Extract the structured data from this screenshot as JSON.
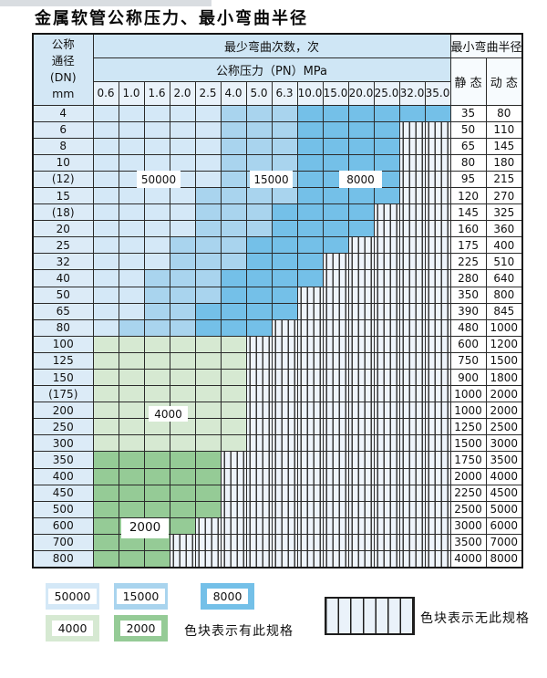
{
  "title": "金属软管公称压力、最小弯曲半径",
  "colors": {
    "b50000": "#d4e8f7",
    "b15000": "#a9d4ee",
    "b8000": "#74c0e8",
    "b4000": "#d6e9d2",
    "b2000": "#95cb96",
    "hatch_bg": "#eef4fb",
    "header_bg": "#cfe6f5",
    "dn_col_bg": "#dcebf7",
    "grid_line": "#2b2b2b"
  },
  "table": {
    "dn_header": [
      "公称",
      "通径",
      "(DN)",
      "mm"
    ],
    "bend_cycles_header": "最少弯曲次数，次",
    "pressure_header": "公称压力（PN）MPa",
    "radius_header": "最小弯曲半径",
    "static_label": "静 态",
    "dynamic_label": "动 态",
    "pressure_columns": [
      "0.6",
      "1.0",
      "1.6",
      "2.0",
      "2.5",
      "4.0",
      "5.0",
      "6.3",
      "10.0",
      "15.0",
      "20.0",
      "25.0",
      "32.0",
      "35.0"
    ],
    "rows": [
      {
        "dn": "4",
        "static": "35",
        "dynamic": "80",
        "segments": [
          [
            "b50000",
            5
          ],
          [
            "b15000",
            3
          ],
          [
            "b8000",
            6
          ]
        ]
      },
      {
        "dn": "6",
        "static": "50",
        "dynamic": "110",
        "segments": [
          [
            "b50000",
            5
          ],
          [
            "b15000",
            3
          ],
          [
            "b8000",
            4
          ],
          [
            "hatch",
            2
          ]
        ]
      },
      {
        "dn": "8",
        "static": "65",
        "dynamic": "145",
        "segments": [
          [
            "b50000",
            5
          ],
          [
            "b15000",
            3
          ],
          [
            "b8000",
            4
          ],
          [
            "hatch",
            2
          ]
        ]
      },
      {
        "dn": "10",
        "static": "80",
        "dynamic": "180",
        "segments": [
          [
            "b50000",
            5
          ],
          [
            "b15000",
            3
          ],
          [
            "b8000",
            4
          ],
          [
            "hatch",
            2
          ]
        ]
      },
      {
        "dn": "(12)",
        "static": "95",
        "dynamic": "215",
        "segments": [
          [
            "b50000",
            5
          ],
          [
            "b15000",
            3
          ],
          [
            "b8000",
            4
          ],
          [
            "hatch",
            2
          ]
        ]
      },
      {
        "dn": "15",
        "static": "120",
        "dynamic": "270",
        "segments": [
          [
            "b50000",
            4
          ],
          [
            "b15000",
            4
          ],
          [
            "b8000",
            4
          ],
          [
            "hatch",
            2
          ]
        ]
      },
      {
        "dn": "(18)",
        "static": "145",
        "dynamic": "325",
        "segments": [
          [
            "b50000",
            4
          ],
          [
            "b15000",
            3
          ],
          [
            "b8000",
            4
          ],
          [
            "hatch",
            3
          ]
        ]
      },
      {
        "dn": "20",
        "static": "160",
        "dynamic": "360",
        "segments": [
          [
            "b50000",
            4
          ],
          [
            "b15000",
            3
          ],
          [
            "b8000",
            4
          ],
          [
            "hatch",
            3
          ]
        ]
      },
      {
        "dn": "25",
        "static": "175",
        "dynamic": "400",
        "segments": [
          [
            "b50000",
            3
          ],
          [
            "b15000",
            3
          ],
          [
            "b8000",
            4
          ],
          [
            "hatch",
            4
          ]
        ]
      },
      {
        "dn": "32",
        "static": "225",
        "dynamic": "510",
        "segments": [
          [
            "b50000",
            3
          ],
          [
            "b15000",
            3
          ],
          [
            "b8000",
            3
          ],
          [
            "hatch",
            5
          ]
        ]
      },
      {
        "dn": "40",
        "static": "280",
        "dynamic": "640",
        "segments": [
          [
            "b50000",
            2
          ],
          [
            "b15000",
            3
          ],
          [
            "b8000",
            4
          ],
          [
            "hatch",
            5
          ]
        ]
      },
      {
        "dn": "50",
        "static": "350",
        "dynamic": "800",
        "segments": [
          [
            "b50000",
            2
          ],
          [
            "b15000",
            3
          ],
          [
            "b8000",
            3
          ],
          [
            "hatch",
            6
          ]
        ]
      },
      {
        "dn": "65",
        "static": "390",
        "dynamic": "845",
        "segments": [
          [
            "b50000",
            2
          ],
          [
            "b15000",
            2
          ],
          [
            "b8000",
            4
          ],
          [
            "hatch",
            6
          ]
        ]
      },
      {
        "dn": "80",
        "static": "480",
        "dynamic": "1000",
        "segments": [
          [
            "b50000",
            1
          ],
          [
            "b15000",
            3
          ],
          [
            "b8000",
            3
          ],
          [
            "hatch",
            7
          ]
        ]
      },
      {
        "dn": "100",
        "static": "600",
        "dynamic": "1200",
        "segments": [
          [
            "b4000",
            6
          ],
          [
            "hatch",
            8
          ]
        ]
      },
      {
        "dn": "125",
        "static": "750",
        "dynamic": "1500",
        "segments": [
          [
            "b4000",
            6
          ],
          [
            "hatch",
            8
          ]
        ]
      },
      {
        "dn": "150",
        "static": "900",
        "dynamic": "1800",
        "segments": [
          [
            "b4000",
            6
          ],
          [
            "hatch",
            8
          ]
        ]
      },
      {
        "dn": "(175)",
        "static": "1000",
        "dynamic": "2000",
        "segments": [
          [
            "b4000",
            6
          ],
          [
            "hatch",
            8
          ]
        ]
      },
      {
        "dn": "200",
        "static": "1000",
        "dynamic": "2000",
        "segments": [
          [
            "b4000",
            6
          ],
          [
            "hatch",
            8
          ]
        ]
      },
      {
        "dn": "250",
        "static": "1250",
        "dynamic": "2500",
        "segments": [
          [
            "b4000",
            6
          ],
          [
            "hatch",
            8
          ]
        ]
      },
      {
        "dn": "300",
        "static": "1500",
        "dynamic": "3000",
        "segments": [
          [
            "b4000",
            6
          ],
          [
            "hatch",
            8
          ]
        ]
      },
      {
        "dn": "350",
        "static": "1750",
        "dynamic": "3500",
        "segments": [
          [
            "b2000",
            5
          ],
          [
            "hatch",
            9
          ]
        ]
      },
      {
        "dn": "400",
        "static": "2000",
        "dynamic": "4000",
        "segments": [
          [
            "b2000",
            5
          ],
          [
            "hatch",
            9
          ]
        ]
      },
      {
        "dn": "450",
        "static": "2250",
        "dynamic": "4500",
        "segments": [
          [
            "b2000",
            5
          ],
          [
            "hatch",
            9
          ]
        ]
      },
      {
        "dn": "500",
        "static": "2500",
        "dynamic": "5000",
        "segments": [
          [
            "b2000",
            5
          ],
          [
            "hatch",
            9
          ]
        ]
      },
      {
        "dn": "600",
        "static": "3000",
        "dynamic": "6000",
        "segments": [
          [
            "b2000",
            4
          ],
          [
            "hatch",
            10
          ]
        ]
      },
      {
        "dn": "700",
        "static": "3500",
        "dynamic": "7000",
        "segments": [
          [
            "b2000",
            3
          ],
          [
            "hatch",
            11
          ]
        ]
      },
      {
        "dn": "800",
        "static": "4000",
        "dynamic": "8000",
        "segments": [
          [
            "b2000",
            3
          ],
          [
            "hatch",
            11
          ]
        ]
      }
    ]
  },
  "overlays": {
    "cycles_50000": "50000",
    "cycles_15000": "15000",
    "cycles_8000": "8000",
    "cycles_4000": "4000",
    "cycles_2000": "2000"
  },
  "legend": {
    "swatches": [
      {
        "label": "50000",
        "color": "b50000"
      },
      {
        "label": "15000",
        "color": "b15000"
      },
      {
        "label": "8000",
        "color": "b8000"
      },
      {
        "label": "4000",
        "color": "b4000"
      },
      {
        "label": "2000",
        "color": "b2000"
      }
    ],
    "available_note": "色块表示有此规格",
    "none_note": "色块表示无此规格"
  }
}
